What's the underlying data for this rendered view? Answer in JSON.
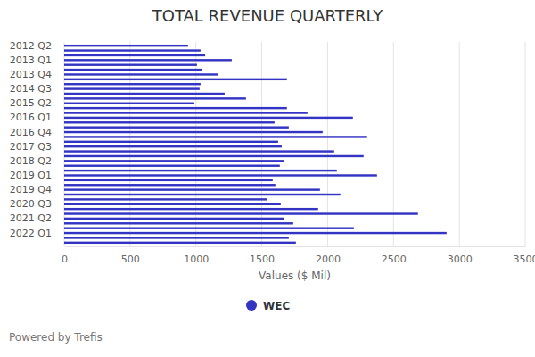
{
  "chart_data": {
    "type": "bar",
    "orientation": "horizontal",
    "title": "TOTAL REVENUE QUARTERLY",
    "x_label": "Values ($ Mil)",
    "annotations": [
      "Powered by Trefis"
    ],
    "categories": [
      "2012 Q2",
      null,
      null,
      "2013 Q1",
      null,
      null,
      "2013 Q4",
      null,
      null,
      "2014 Q3",
      null,
      null,
      "2015 Q2",
      null,
      null,
      "2016 Q1",
      null,
      null,
      "2016 Q4",
      null,
      null,
      "2017 Q3",
      null,
      null,
      "2018 Q2",
      null,
      null,
      "2019 Q1",
      null,
      null,
      "2019 Q4",
      null,
      null,
      "2020 Q3",
      null,
      null,
      "2021 Q2",
      null,
      null,
      "2022 Q1",
      null,
      null
    ],
    "series": [
      {
        "name": "WEC",
        "color": "#3333c4",
        "values": [
          940,
          1035,
          1070,
          1272,
          1008,
          1049,
          1170,
          1691,
          1035,
          1028,
          1218,
          1380,
          988,
          1691,
          1847,
          2192,
          1597,
          1705,
          1962,
          2300,
          1624,
          1651,
          2050,
          2273,
          1671,
          1637,
          2070,
          2375,
          1583,
          1603,
          1942,
          2097,
          1543,
          1644,
          1928,
          2686,
          1671,
          1739,
          2199,
          2903,
          1705,
          1759
        ]
      }
    ],
    "xlim": [
      0,
      3500
    ],
    "xticks": [
      0,
      500,
      1000,
      1500,
      2000,
      2500,
      3000,
      3500
    ],
    "grid": true,
    "legend": "bottom"
  }
}
